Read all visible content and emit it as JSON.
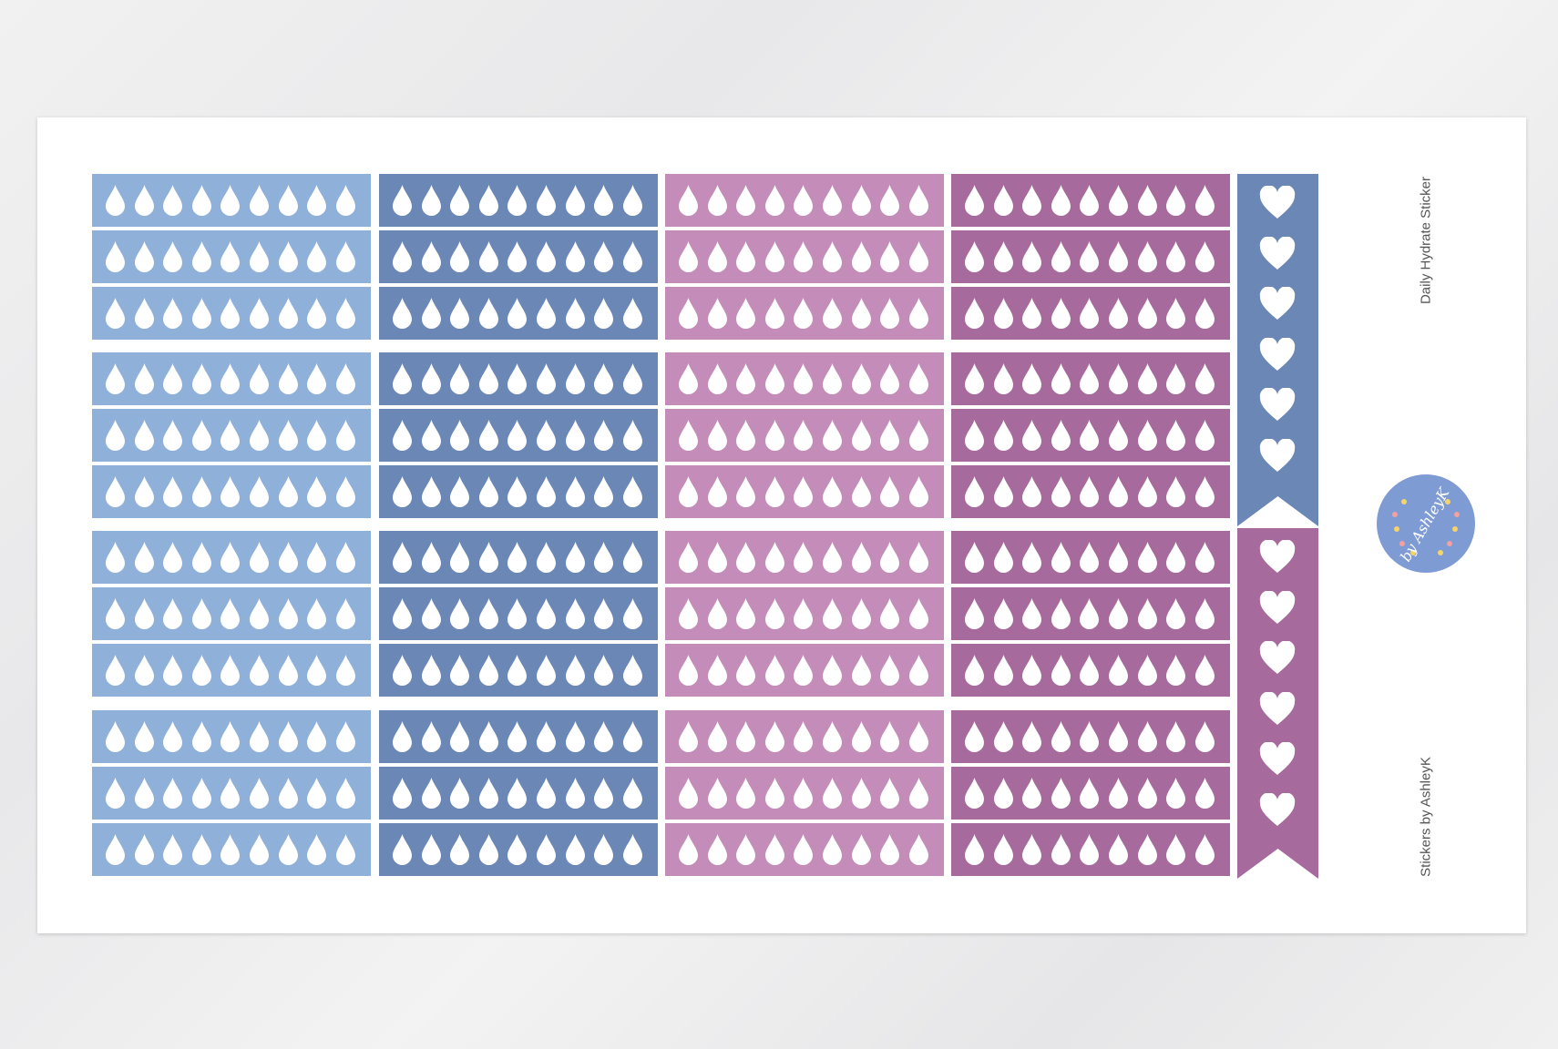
{
  "sheet": {
    "title": "Daily Hydrate Sticker",
    "footer": "Stickers by AshleyK",
    "logo_text": "by AshleyK",
    "icon": "water-drop-icon",
    "drops_per_strip": 9,
    "groups": 4,
    "strips_per_group": 3,
    "column_colors": [
      "#8fb0d8",
      "#6a87b5",
      "#c48cb8",
      "#a66a9c"
    ],
    "banners": [
      {
        "color": "#6a87b5",
        "icon": "heart-icon",
        "count": 6
      },
      {
        "color": "#a66a9c",
        "icon": "heart-icon",
        "count": 6
      }
    ]
  }
}
